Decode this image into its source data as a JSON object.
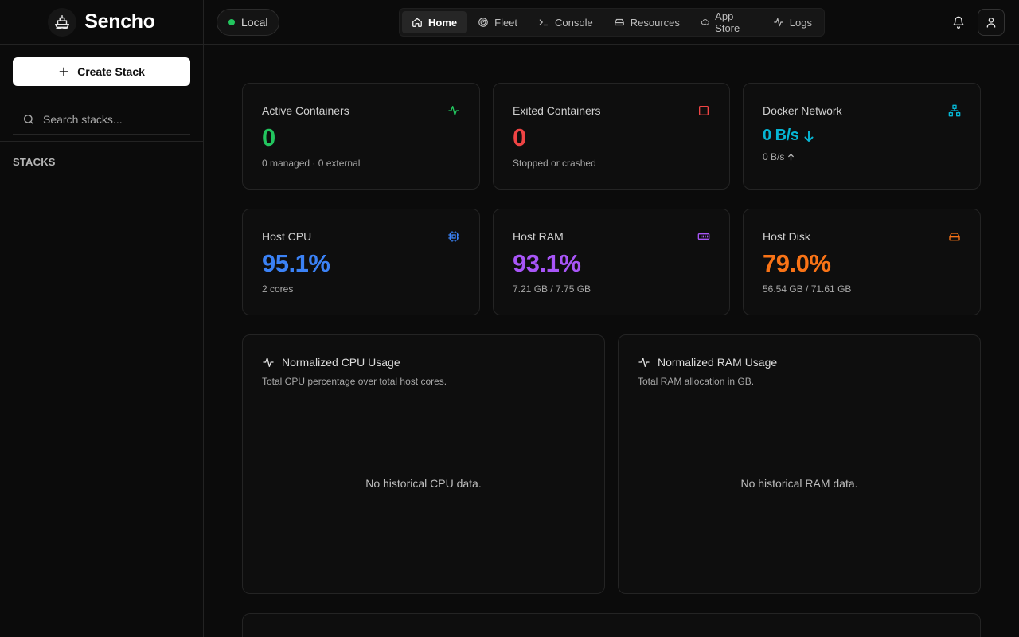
{
  "brand": {
    "name": "Sencho",
    "logo_icon": "ship-logo-icon"
  },
  "sidebar": {
    "create_label": "Create Stack",
    "search_placeholder": "Search stacks...",
    "section_label": "STACKS"
  },
  "topbar": {
    "node_label": "Local",
    "node_status_color": "#22c55e",
    "nav": [
      {
        "label": "Home",
        "icon": "home-icon",
        "active": true
      },
      {
        "label": "Fleet",
        "icon": "radar-icon",
        "active": false
      },
      {
        "label": "Console",
        "icon": "terminal-icon",
        "active": false
      },
      {
        "label": "Resources",
        "icon": "drive-icon",
        "active": false
      },
      {
        "label": "App Store",
        "icon": "cloud-download-icon",
        "active": false
      },
      {
        "label": "Logs",
        "icon": "activity-icon",
        "active": false
      }
    ]
  },
  "stats": {
    "active": {
      "title": "Active Containers",
      "value": "0",
      "sub": "0 managed · 0 external",
      "color": "#22c55e",
      "icon": "activity-icon"
    },
    "exited": {
      "title": "Exited Containers",
      "value": "0",
      "sub": "Stopped or crashed",
      "color": "#ef4444",
      "icon": "square-icon"
    },
    "network": {
      "title": "Docker Network",
      "value": "0 B/s",
      "sub": "0 B/s",
      "color": "#06b6d4",
      "icon": "network-icon"
    },
    "cpu": {
      "title": "Host CPU",
      "value": "95.1%",
      "sub": "2 cores",
      "color": "#3b82f6",
      "icon": "cpu-icon"
    },
    "ram": {
      "title": "Host RAM",
      "value": "93.1%",
      "sub": "7.21 GB / 7.75 GB",
      "color": "#a855f7",
      "icon": "memory-icon"
    },
    "disk": {
      "title": "Host Disk",
      "value": "79.0%",
      "sub": "56.54 GB / 71.61 GB",
      "color": "#f97316",
      "icon": "hard-drive-icon"
    }
  },
  "charts": {
    "cpu": {
      "title": "Normalized CPU Usage",
      "desc": "Total CPU percentage over total host cores.",
      "empty": "No historical CPU data."
    },
    "ram": {
      "title": "Normalized RAM Usage",
      "desc": "Total RAM allocation in GB.",
      "empty": "No historical RAM data."
    }
  }
}
